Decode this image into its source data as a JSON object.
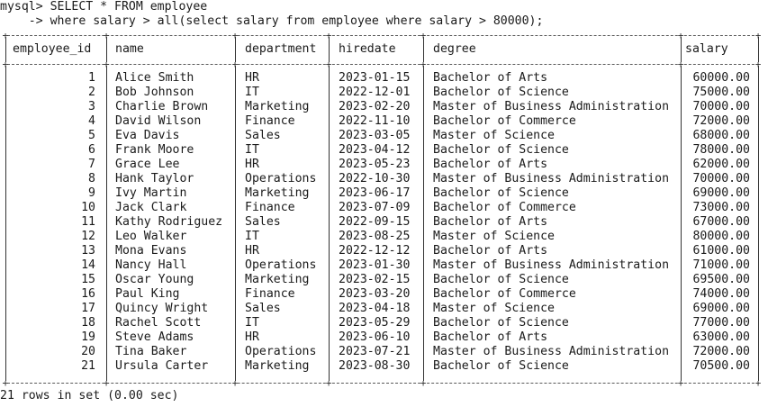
{
  "prompt": {
    "line1": "mysql> SELECT * FROM employee",
    "line2": "    -> where salary > all(select salary from employee where salary > 80000);"
  },
  "table": {
    "columns": [
      "employee_id",
      "name",
      "department",
      "hiredate",
      "degree",
      "salary"
    ],
    "rows": [
      [
        "1",
        "Alice Smith",
        "HR",
        "2023-01-15",
        "Bachelor of Arts",
        "60000.00"
      ],
      [
        "2",
        "Bob Johnson",
        "IT",
        "2022-12-01",
        "Bachelor of Science",
        "75000.00"
      ],
      [
        "3",
        "Charlie Brown",
        "Marketing",
        "2023-02-20",
        "Master of Business Administration",
        "70000.00"
      ],
      [
        "4",
        "David Wilson",
        "Finance",
        "2022-11-10",
        "Bachelor of Commerce",
        "72000.00"
      ],
      [
        "5",
        "Eva Davis",
        "Sales",
        "2023-03-05",
        "Master of Science",
        "68000.00"
      ],
      [
        "6",
        "Frank Moore",
        "IT",
        "2023-04-12",
        "Bachelor of Science",
        "78000.00"
      ],
      [
        "7",
        "Grace Lee",
        "HR",
        "2023-05-23",
        "Bachelor of Arts",
        "62000.00"
      ],
      [
        "8",
        "Hank Taylor",
        "Operations",
        "2022-10-30",
        "Master of Business Administration",
        "70000.00"
      ],
      [
        "9",
        "Ivy Martin",
        "Marketing",
        "2023-06-17",
        "Bachelor of Science",
        "69000.00"
      ],
      [
        "10",
        "Jack Clark",
        "Finance",
        "2023-07-09",
        "Bachelor of Commerce",
        "73000.00"
      ],
      [
        "11",
        "Kathy Rodriguez",
        "Sales",
        "2022-09-15",
        "Bachelor of Arts",
        "67000.00"
      ],
      [
        "12",
        "Leo Walker",
        "IT",
        "2023-08-25",
        "Master of Science",
        "80000.00"
      ],
      [
        "13",
        "Mona Evans",
        "HR",
        "2022-12-12",
        "Bachelor of Arts",
        "61000.00"
      ],
      [
        "14",
        "Nancy Hall",
        "Operations",
        "2023-01-30",
        "Master of Business Administration",
        "71000.00"
      ],
      [
        "15",
        "Oscar Young",
        "Marketing",
        "2023-02-15",
        "Bachelor of Science",
        "69500.00"
      ],
      [
        "16",
        "Paul King",
        "Finance",
        "2023-03-20",
        "Bachelor of Commerce",
        "74000.00"
      ],
      [
        "17",
        "Quincy Wright",
        "Sales",
        "2023-04-18",
        "Master of Science",
        "69000.00"
      ],
      [
        "18",
        "Rachel Scott",
        "IT",
        "2023-05-29",
        "Bachelor of Science",
        "77000.00"
      ],
      [
        "19",
        "Steve Adams",
        "HR",
        "2023-06-10",
        "Bachelor of Arts",
        "63000.00"
      ],
      [
        "20",
        "Tina Baker",
        "Operations",
        "2023-07-21",
        "Master of Business Administration",
        "72000.00"
      ],
      [
        "21",
        "Ursula Carter",
        "Marketing",
        "2023-08-30",
        "Bachelor of Science",
        "70500.00"
      ]
    ]
  },
  "result_summary": "21 rows in set (0.00 sec)"
}
